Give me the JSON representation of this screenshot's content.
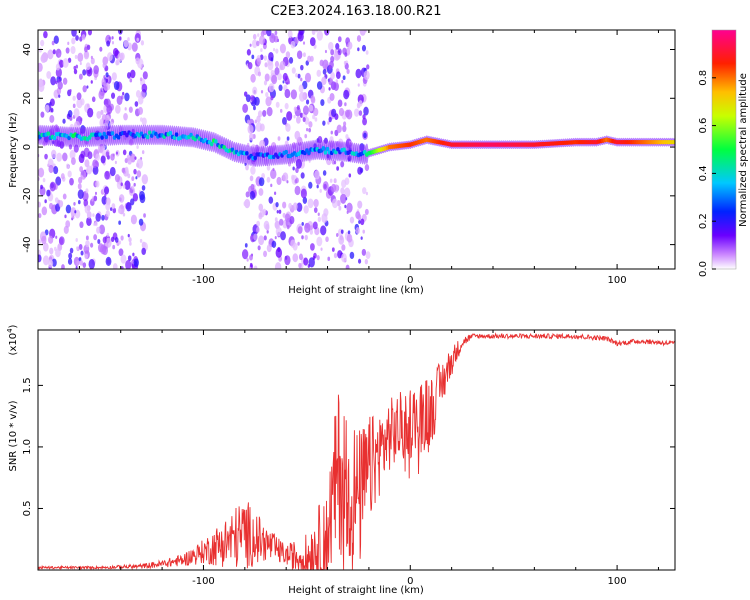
{
  "title": "C2E3.2024.163.18.00.R21",
  "colors": {
    "snr_line": "#e83030",
    "axis": "#000000"
  },
  "colorbar": {
    "label": "Normalized spectral amplitude",
    "ticks": [
      "0.0",
      "0.2",
      "0.4",
      "0.6",
      "0.8"
    ],
    "tick_values": [
      0.0,
      0.2,
      0.4,
      0.6,
      0.8
    ],
    "range": [
      0,
      1
    ],
    "colormap": "white-purple-blue-cyan-green-yellow-red-magenta"
  },
  "chart_data": [
    {
      "type": "heatmap",
      "title": "",
      "xlabel": "Height of straight line (km)",
      "ylabel": "Frequency (Hz)",
      "xlim": [
        -180,
        128
      ],
      "ylim": [
        -50,
        48
      ],
      "x_ticks": [
        -100,
        0,
        100
      ],
      "x_tick_labels": [
        "-100",
        "0",
        "100"
      ],
      "y_ticks": [
        -40,
        -20,
        0,
        20,
        40
      ],
      "y_tick_labels": [
        "-40",
        "-20",
        "0",
        "20",
        "40"
      ],
      "ridge": {
        "description_points_x": [
          -180,
          -160,
          -140,
          -120,
          -105,
          -95,
          -85,
          -75,
          -60,
          -45,
          -30,
          -22,
          -10,
          0,
          8,
          20,
          40,
          60,
          80,
          90,
          95,
          100,
          128
        ],
        "frequency_y": [
          5,
          4,
          5,
          5,
          4,
          2,
          -2,
          -4,
          -3,
          -1,
          -2,
          -3,
          0,
          1,
          3,
          1,
          1,
          1,
          2,
          2,
          3,
          2,
          2
        ],
        "amplitude": [
          0.45,
          0.45,
          0.3,
          0.4,
          0.45,
          0.5,
          0.4,
          0.3,
          0.35,
          0.35,
          0.35,
          0.4,
          0.8,
          0.85,
          0.8,
          0.9,
          0.95,
          0.9,
          0.85,
          0.9,
          0.8,
          0.9,
          0.7
        ]
      },
      "noise_regions_x": [
        [
          -180,
          -145
        ],
        [
          -150,
          -128
        ],
        [
          -80,
          -28
        ],
        [
          -26,
          -20
        ]
      ]
    },
    {
      "type": "line",
      "title": "",
      "xlabel": "Height of straight line (km)",
      "ylabel": "SNR (10 * v/v)",
      "y_scale_label": "(x10",
      "y_scale_exponent": "4",
      "y_scale_suffix": ")",
      "xlim": [
        -180,
        128
      ],
      "ylim": [
        0,
        1.95
      ],
      "x_ticks": [
        -100,
        0,
        100
      ],
      "x_tick_labels": [
        "-100",
        "0",
        "100"
      ],
      "y_ticks": [
        0.5,
        1.0,
        1.5
      ],
      "y_tick_labels": [
        "0.5",
        "1.0",
        "1.5"
      ],
      "series": [
        {
          "name": "",
          "x": [
            -180,
            -150,
            -130,
            -120,
            -110,
            -100,
            -90,
            -80,
            -70,
            -60,
            -50,
            -40,
            -35,
            -30,
            -25,
            -20,
            -15,
            -10,
            -5,
            0,
            5,
            10,
            15,
            20,
            25,
            30,
            40,
            60,
            80,
            95,
            100,
            110,
            128
          ],
          "y": [
            0.02,
            0.02,
            0.03,
            0.05,
            0.08,
            0.15,
            0.22,
            0.3,
            0.22,
            0.12,
            0.1,
            0.3,
            0.8,
            0.75,
            0.55,
            0.8,
            0.95,
            1.1,
            1.15,
            1.2,
            1.25,
            1.3,
            1.5,
            1.7,
            1.85,
            1.9,
            1.9,
            1.9,
            1.9,
            1.88,
            1.84,
            1.86,
            1.84
          ],
          "noise_amplitude": [
            0.01,
            0.01,
            0.02,
            0.03,
            0.05,
            0.1,
            0.2,
            0.3,
            0.15,
            0.08,
            0.2,
            0.4,
            0.7,
            0.6,
            0.6,
            0.45,
            0.35,
            0.3,
            0.3,
            0.3,
            0.3,
            0.3,
            0.2,
            0.12,
            0.05,
            0.02,
            0.02,
            0.02,
            0.02,
            0.02,
            0.02,
            0.02,
            0.02
          ]
        }
      ]
    }
  ]
}
